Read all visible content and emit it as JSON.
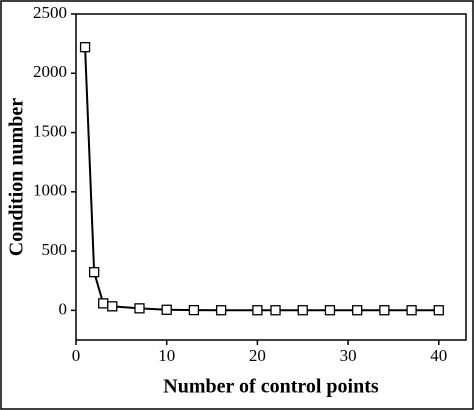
{
  "chart_data": {
    "type": "line",
    "x_label": "Number of control points",
    "y_label": "Condition number",
    "x": [
      1,
      2,
      3,
      4,
      7,
      10,
      13,
      16,
      20,
      22,
      25,
      28,
      31,
      34,
      37,
      40
    ],
    "series": [
      {
        "name": "Condition number",
        "color": "#000000",
        "values": [
          2220,
          322,
          59,
          34,
          17,
          5,
          2,
          1,
          1,
          1,
          1,
          1,
          1,
          1,
          1,
          1
        ]
      }
    ],
    "xlim": [
      0,
      43
    ],
    "ylim": [
      -250,
      2500
    ],
    "xticks": [
      0,
      10,
      20,
      30,
      40
    ],
    "yticks": [
      0,
      500,
      1000,
      1500,
      2000,
      2500
    ],
    "grid": false
  }
}
